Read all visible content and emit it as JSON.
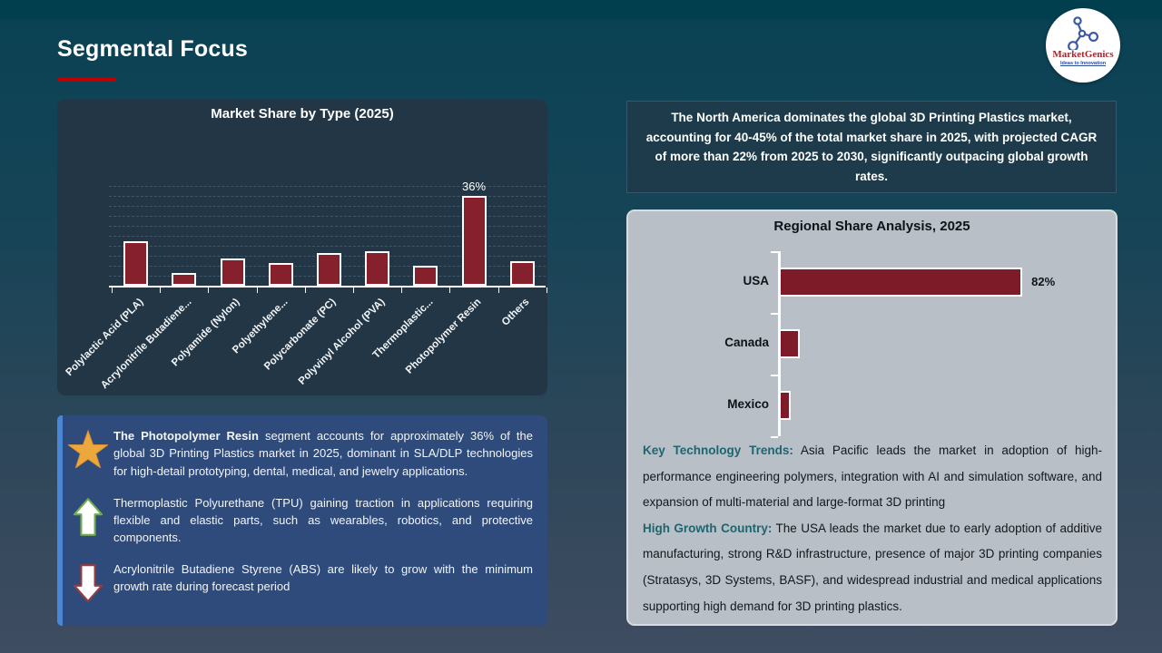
{
  "slide": {
    "title": "Segmental Focus",
    "logo": {
      "brand": "MarketGenics",
      "tagline": "Ideas to Innovation"
    }
  },
  "chart_data": [
    {
      "type": "bar",
      "title": "Market Share by Type (2025)",
      "categories": [
        "Polylactic Acid (PLA)",
        "Acrylonitrile Butadiene...",
        "Polyamide (Nylon)",
        "Polyethylene...",
        "Polycarbonate (PC)",
        "Polyvinyl Alcohol (PVA)",
        "Thermoplastic...",
        "Photopolymer Resin",
        "Others"
      ],
      "values": [
        18,
        5,
        11,
        9,
        13,
        14,
        8,
        36,
        10
      ],
      "data_labels": [
        "",
        "",
        "",
        "",
        "",
        "",
        "",
        "36%",
        ""
      ],
      "xlabel": "",
      "ylabel": "",
      "ylim": [
        0,
        40
      ],
      "grid_step": 4,
      "grid": true,
      "bar_color": "#87202D",
      "orientation": "vertical"
    },
    {
      "type": "bar",
      "title": "Regional Share Analysis, 2025",
      "categories": [
        "USA",
        "Canada",
        "Mexico"
      ],
      "values": [
        82,
        7,
        4
      ],
      "data_labels": [
        "82%",
        "",
        ""
      ],
      "xlabel": "",
      "ylabel": "",
      "xlim": [
        0,
        100
      ],
      "grid": false,
      "bar_color": "#7E1B28",
      "orientation": "horizontal"
    }
  ],
  "highlight_box": {
    "text": "The North America dominates the global 3D Printing Plastics  market, accounting for 40-45% of the total market share in 2025, with projected CAGR of more than 22% from 2025 to 2030, significantly outpacing global growth rates."
  },
  "insight_box": {
    "items": [
      {
        "icon": "star",
        "lead": "The Photopolymer Resin",
        "text": " segment accounts for approximately 36% of the global 3D Printing Plastics  market in 2025, dominant in SLA/DLP technologies for high-detail prototyping, dental, medical, and jewelry applications."
      },
      {
        "icon": "up-arrow",
        "lead": "",
        "text": "Thermoplastic Polyurethane (TPU) gaining traction in applications requiring flexible and elastic parts, such as wearables, robotics, and protective components."
      },
      {
        "icon": "down-arrow",
        "lead": "",
        "text": "Acrylonitrile Butadiene Styrene (ABS) are likely to grow with the minimum growth rate during forecast period"
      }
    ]
  },
  "analysis_text": {
    "trend_label": "Key Technology Trends:",
    "trend_text": " Asia Pacific leads the market in adoption of high-performance engineering polymers, integration with AI and simulation software, and expansion of multi-material and large-format 3D printing",
    "growth_label": "High Growth Country:",
    "growth_text": " The USA leads the market due to early adoption of additive manufacturing, strong R&D infrastructure, presence of major 3D printing companies (Stratasys, 3D Systems, BASF), and widespread industrial and medical applications supporting high demand for 3D printing plastics."
  },
  "colors": {
    "accent_red": "#C00000",
    "bar_red_left": "#87202D",
    "bar_red_right": "#7E1B28",
    "panel_dark": "#223645",
    "panel_gray": "#B9BFC6",
    "box_navy": "#2F4B7B",
    "accent_blue": "#4A86D6",
    "teal_label": "#1E6570",
    "star_gold": "#ECA83D",
    "arrow_green": "#6FAE4B",
    "arrow_red": "#993B40",
    "background_top": "#023F4E",
    "background_bottom": "#3F4C61"
  }
}
